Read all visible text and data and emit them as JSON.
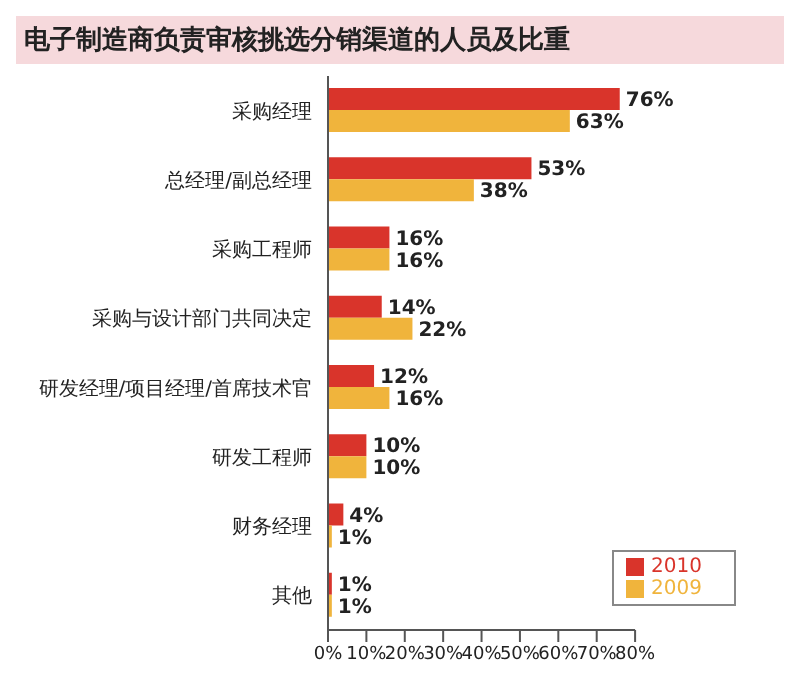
{
  "chart_data": {
    "type": "bar",
    "orientation": "horizontal",
    "title": "电子制造商负责审核挑选分销渠道的人员及比重",
    "categories": [
      "采购经理",
      "总经理/副总经理",
      "采购工程师",
      "采购与设计部门共同决定",
      "研发经理/项目经理/首席技术官",
      "研发工程师",
      "财务经理",
      "其他"
    ],
    "series": [
      {
        "name": "2010",
        "color": "#d9342b",
        "values": [
          76,
          53,
          16,
          14,
          12,
          10,
          4,
          1
        ],
        "value_labels": [
          "76%",
          "53%",
          "16%",
          "14%",
          "12%",
          "10%",
          "4%",
          "1%"
        ]
      },
      {
        "name": "2009",
        "color": "#f0b43c",
        "values": [
          63,
          38,
          16,
          22,
          16,
          10,
          1,
          1
        ],
        "value_labels": [
          "63%",
          "38%",
          "16%",
          "22%",
          "16%",
          "10%",
          "1%",
          "1%"
        ]
      }
    ],
    "xlim": [
      0,
      80
    ],
    "xticks": [
      {
        "value": 0,
        "label": "0%"
      },
      {
        "value": 10,
        "label": "10%"
      },
      {
        "value": 20,
        "label": "20%"
      },
      {
        "value": 30,
        "label": "30%"
      },
      {
        "value": 40,
        "label": "40%"
      },
      {
        "value": 50,
        "label": "50%"
      },
      {
        "value": 60,
        "label": "60%"
      },
      {
        "value": 70,
        "label": "70%"
      },
      {
        "value": 80,
        "label": "80%"
      }
    ],
    "grid": false,
    "legend": "bottom right"
  }
}
